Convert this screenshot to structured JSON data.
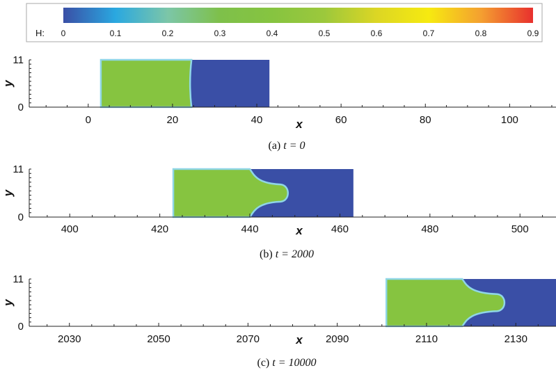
{
  "colorbar": {
    "label": "H:",
    "ticks": [
      "0",
      "0.1",
      "0.2",
      "0.3",
      "0.4",
      "0.5",
      "0.6",
      "0.7",
      "0.8",
      "0.9"
    ],
    "colors": [
      "#3a4fa6",
      "#2aa8e0",
      "#7cc6a8",
      "#7ec04a",
      "#86c440",
      "#9cc83c",
      "#dcd624",
      "#f6ea10",
      "#f4a030",
      "#e8302e"
    ]
  },
  "chart_data": [
    {
      "type": "heatmap",
      "caption_prefix": "(a)",
      "caption_eq": "t = 0",
      "xlabel": "x",
      "ylabel": "y",
      "xlim": [
        -14,
        111
      ],
      "ylim": [
        0,
        11
      ],
      "xticks": [
        0,
        20,
        40,
        60,
        80,
        100
      ],
      "yticks": [
        0,
        11
      ],
      "field": {
        "x_start": 3,
        "x_end": 43,
        "interface_x": 24.5,
        "shape": "flat",
        "fill_H": 0.4,
        "displaced_H": 0
      }
    },
    {
      "type": "heatmap",
      "caption_prefix": "(b)",
      "caption_eq": "t = 2000",
      "xlabel": "x",
      "ylabel": "y",
      "xlim": [
        391,
        508
      ],
      "ylim": [
        0,
        11
      ],
      "xticks": [
        400,
        420,
        440,
        460,
        480,
        500
      ],
      "yticks": [
        0,
        11
      ],
      "field": {
        "x_start": 423,
        "x_end": 463,
        "interface_x": 440,
        "finger_tip_x": 449,
        "shape": "finger",
        "fill_H": 0.4,
        "displaced_H": 0
      }
    },
    {
      "type": "heatmap",
      "caption_prefix": "(c)",
      "caption_eq": "t = 10000",
      "xlabel": "x",
      "ylabel": "y",
      "xlim": [
        2021,
        2139
      ],
      "ylim": [
        0,
        11
      ],
      "xticks": [
        2030,
        2050,
        2070,
        2090,
        2110,
        2130
      ],
      "yticks": [
        0,
        11
      ],
      "field": {
        "x_start": 2101,
        "x_end": 2139,
        "interface_x": 2118,
        "finger_tip_x": 2128,
        "shape": "finger",
        "fill_H": 0.4,
        "displaced_H": 0
      }
    }
  ]
}
